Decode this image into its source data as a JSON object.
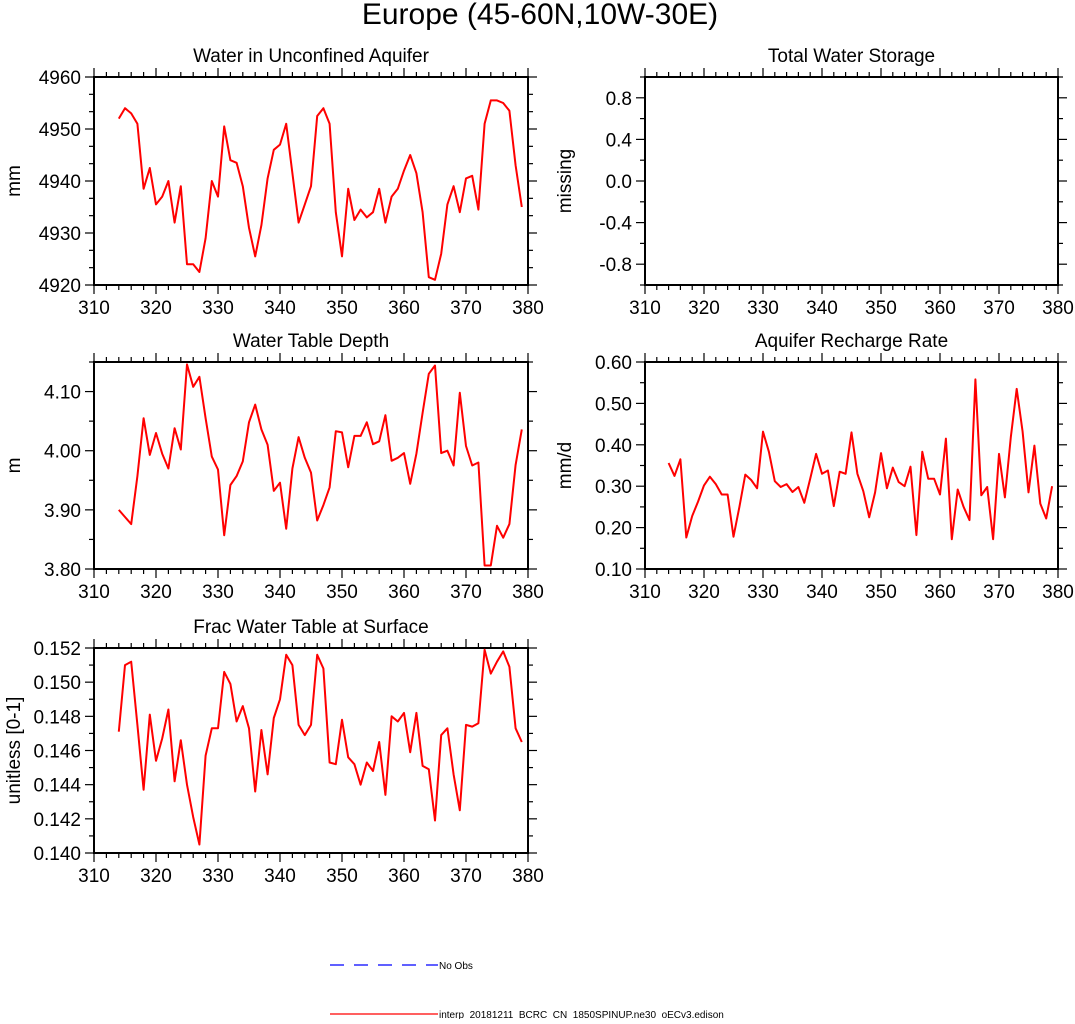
{
  "figure": {
    "title": "Europe (45-60N,10W-30E)"
  },
  "legend": {
    "entries": [
      {
        "label": "No Obs",
        "color": "#0000ff",
        "style": "dashed"
      },
      {
        "label": "interp_20181211_BCRC_CN_1850SPINUP.ne30_oECv3.edison",
        "color": "#ff0000",
        "style": "solid"
      }
    ]
  },
  "chart_data": [
    {
      "type": "line",
      "title": "Water in Unconfined Aquifer",
      "xlabel": "",
      "ylabel": "mm",
      "xlim": [
        310,
        380
      ],
      "ylim": [
        4920,
        4960
      ],
      "xticks": [
        310,
        320,
        330,
        340,
        350,
        360,
        370,
        380
      ],
      "yticks": [
        4920,
        4930,
        4940,
        4950,
        4960
      ],
      "yticklabels": [
        "4920",
        "4930",
        "4940",
        "4950",
        "4960"
      ],
      "yminor": 2,
      "series": [
        {
          "color": "#ff0000",
          "x": [
            314,
            315,
            316,
            317,
            318,
            319,
            320,
            321,
            322,
            323,
            324,
            325,
            326,
            327,
            328,
            329,
            330,
            331,
            332,
            333,
            334,
            335,
            336,
            337,
            338,
            339,
            340,
            341,
            342,
            343,
            344,
            345,
            346,
            347,
            348,
            349,
            350,
            351,
            352,
            353,
            354,
            355,
            356,
            357,
            358,
            359,
            360,
            361,
            362,
            363,
            364,
            365,
            366,
            367,
            368,
            369,
            370,
            371,
            372,
            373,
            374,
            375,
            376,
            377,
            378,
            379
          ],
          "values": [
            4952,
            4954,
            4953,
            4951,
            4938.5,
            4942.5,
            4935.5,
            4937,
            4940,
            4932,
            4939,
            4924,
            4924,
            4922.5,
            4929,
            4940,
            4937,
            4950.5,
            4944,
            4943.5,
            4939,
            4931,
            4925.5,
            4931.5,
            4940.5,
            4946,
            4947,
            4951,
            4941.5,
            4932,
            4935.5,
            4939,
            4952.5,
            4954,
            4951,
            4934,
            4925.5,
            4938.5,
            4932.5,
            4934.5,
            4933,
            4934,
            4938.5,
            4932,
            4937,
            4938.5,
            4942,
            4945,
            4941.5,
            4934,
            4921.5,
            4921,
            4926,
            4935.5,
            4939,
            4934,
            4940.5,
            4941,
            4934.5,
            4951,
            4955.5,
            4955.5,
            4955,
            4953.5,
            4943,
            4935
          ]
        }
      ]
    },
    {
      "type": "line",
      "title": "Total Water Storage",
      "xlabel": "",
      "ylabel": "missing",
      "xlim": [
        310,
        380
      ],
      "ylim": [
        -1.0,
        1.0
      ],
      "xticks": [
        310,
        320,
        330,
        340,
        350,
        360,
        370,
        380
      ],
      "yticks": [
        -0.8,
        -0.4,
        0.0,
        0.4,
        0.8
      ],
      "yticklabels": [
        "-0.8",
        "-0.4",
        "0.0",
        "0.4",
        "0.8"
      ],
      "yminor": 1,
      "series": []
    },
    {
      "type": "line",
      "title": "Water Table Depth",
      "xlabel": "",
      "ylabel": "m",
      "xlim": [
        310,
        380
      ],
      "ylim": [
        3.8,
        4.15
      ],
      "xticks": [
        310,
        320,
        330,
        340,
        350,
        360,
        370,
        380
      ],
      "yticks": [
        3.8,
        3.9,
        4.0,
        4.1
      ],
      "yticklabels": [
        "3.80",
        "3.90",
        "4.00",
        "4.10"
      ],
      "yminor": 1,
      "series": [
        {
          "color": "#ff0000",
          "x": [
            314,
            315,
            316,
            317,
            318,
            319,
            320,
            321,
            322,
            323,
            324,
            325,
            326,
            327,
            328,
            329,
            330,
            331,
            332,
            333,
            334,
            335,
            336,
            337,
            338,
            339,
            340,
            341,
            342,
            343,
            344,
            345,
            346,
            347,
            348,
            349,
            350,
            351,
            352,
            353,
            354,
            355,
            356,
            357,
            358,
            359,
            360,
            361,
            362,
            363,
            364,
            365,
            366,
            367,
            368,
            369,
            370,
            371,
            372,
            373,
            374,
            375,
            376,
            377,
            378,
            379
          ],
          "values": [
            3.9,
            3.888,
            3.876,
            3.957,
            4.055,
            3.993,
            4.03,
            3.995,
            3.97,
            4.038,
            4.002,
            4.146,
            4.108,
            4.125,
            4.055,
            3.99,
            3.968,
            3.857,
            3.942,
            3.957,
            3.982,
            4.048,
            4.078,
            4.036,
            4.01,
            3.932,
            3.946,
            3.868,
            3.97,
            4.023,
            3.988,
            3.963,
            3.882,
            3.908,
            3.938,
            4.033,
            4.031,
            3.972,
            4.025,
            4.025,
            4.048,
            4.011,
            4.016,
            4.06,
            3.983,
            3.988,
            3.996,
            3.944,
            3.995,
            4.064,
            4.13,
            4.144,
            3.996,
            4.0,
            3.975,
            4.098,
            4.008,
            3.975,
            3.98,
            3.806,
            3.806,
            3.873,
            3.853,
            3.876,
            3.976,
            4.036
          ]
        }
      ]
    },
    {
      "type": "line",
      "title": "Aquifer Recharge Rate",
      "xlabel": "",
      "ylabel": "mm/d",
      "xlim": [
        310,
        380
      ],
      "ylim": [
        0.1,
        0.6
      ],
      "xticks": [
        310,
        320,
        330,
        340,
        350,
        360,
        370,
        380
      ],
      "yticks": [
        0.1,
        0.2,
        0.3,
        0.4,
        0.5,
        0.6
      ],
      "yticklabels": [
        "0.10",
        "0.20",
        "0.30",
        "0.40",
        "0.50",
        "0.60"
      ],
      "yminor": 1,
      "series": [
        {
          "color": "#ff0000",
          "x": [
            314,
            315,
            316,
            317,
            318,
            319,
            320,
            321,
            322,
            323,
            324,
            325,
            326,
            327,
            328,
            329,
            330,
            331,
            332,
            333,
            334,
            335,
            336,
            337,
            338,
            339,
            340,
            341,
            342,
            343,
            344,
            345,
            346,
            347,
            348,
            349,
            350,
            351,
            352,
            353,
            354,
            355,
            356,
            357,
            358,
            359,
            360,
            361,
            362,
            363,
            364,
            365,
            366,
            367,
            368,
            369,
            370,
            371,
            372,
            373,
            374,
            375,
            376,
            377,
            378,
            379
          ],
          "values": [
            0.356,
            0.325,
            0.365,
            0.176,
            0.228,
            0.263,
            0.302,
            0.323,
            0.305,
            0.28,
            0.28,
            0.178,
            0.25,
            0.328,
            0.315,
            0.295,
            0.432,
            0.383,
            0.312,
            0.298,
            0.305,
            0.286,
            0.298,
            0.26,
            0.318,
            0.378,
            0.33,
            0.338,
            0.252,
            0.335,
            0.33,
            0.43,
            0.33,
            0.288,
            0.225,
            0.285,
            0.38,
            0.295,
            0.345,
            0.31,
            0.3,
            0.347,
            0.182,
            0.383,
            0.318,
            0.318,
            0.28,
            0.415,
            0.172,
            0.292,
            0.25,
            0.218,
            0.558,
            0.278,
            0.298,
            0.172,
            0.378,
            0.273,
            0.418,
            0.535,
            0.432,
            0.285,
            0.398,
            0.258,
            0.222,
            0.3
          ]
        }
      ]
    },
    {
      "type": "line",
      "title": "Frac Water Table at Surface",
      "xlabel": "",
      "ylabel": "unitless [0-1]",
      "xlim": [
        310,
        380
      ],
      "ylim": [
        0.14,
        0.152
      ],
      "xticks": [
        310,
        320,
        330,
        340,
        350,
        360,
        370,
        380
      ],
      "yticks": [
        0.14,
        0.142,
        0.144,
        0.146,
        0.148,
        0.15,
        0.152
      ],
      "yticklabels": [
        "0.140",
        "0.142",
        "0.144",
        "0.146",
        "0.148",
        "0.150",
        "0.152"
      ],
      "yminor": 1,
      "series": [
        {
          "color": "#ff0000",
          "x": [
            314,
            315,
            316,
            317,
            318,
            319,
            320,
            321,
            322,
            323,
            324,
            325,
            326,
            327,
            328,
            329,
            330,
            331,
            332,
            333,
            334,
            335,
            336,
            337,
            338,
            339,
            340,
            341,
            342,
            343,
            344,
            345,
            346,
            347,
            348,
            349,
            350,
            351,
            352,
            353,
            354,
            355,
            356,
            357,
            358,
            359,
            360,
            361,
            362,
            363,
            364,
            365,
            366,
            367,
            368,
            369,
            370,
            371,
            372,
            373,
            374,
            375,
            376,
            377,
            378,
            379
          ],
          "values": [
            0.1471,
            0.151,
            0.1512,
            0.1475,
            0.1437,
            0.1481,
            0.1454,
            0.1467,
            0.1484,
            0.1442,
            0.1466,
            0.144,
            0.1421,
            0.1405,
            0.1457,
            0.1473,
            0.1473,
            0.1506,
            0.1499,
            0.1477,
            0.1486,
            0.1473,
            0.1436,
            0.1472,
            0.1446,
            0.1479,
            0.149,
            0.1516,
            0.151,
            0.1475,
            0.1469,
            0.1475,
            0.1516,
            0.1508,
            0.1453,
            0.1452,
            0.1478,
            0.1456,
            0.1452,
            0.144,
            0.1453,
            0.1448,
            0.1465,
            0.1434,
            0.148,
            0.1477,
            0.1482,
            0.1459,
            0.1482,
            0.1451,
            0.1449,
            0.1419,
            0.1469,
            0.1473,
            0.1446,
            0.1425,
            0.1475,
            0.1474,
            0.1476,
            0.1519,
            0.1505,
            0.1512,
            0.1518,
            0.1509,
            0.1473,
            0.1465
          ]
        }
      ]
    }
  ]
}
